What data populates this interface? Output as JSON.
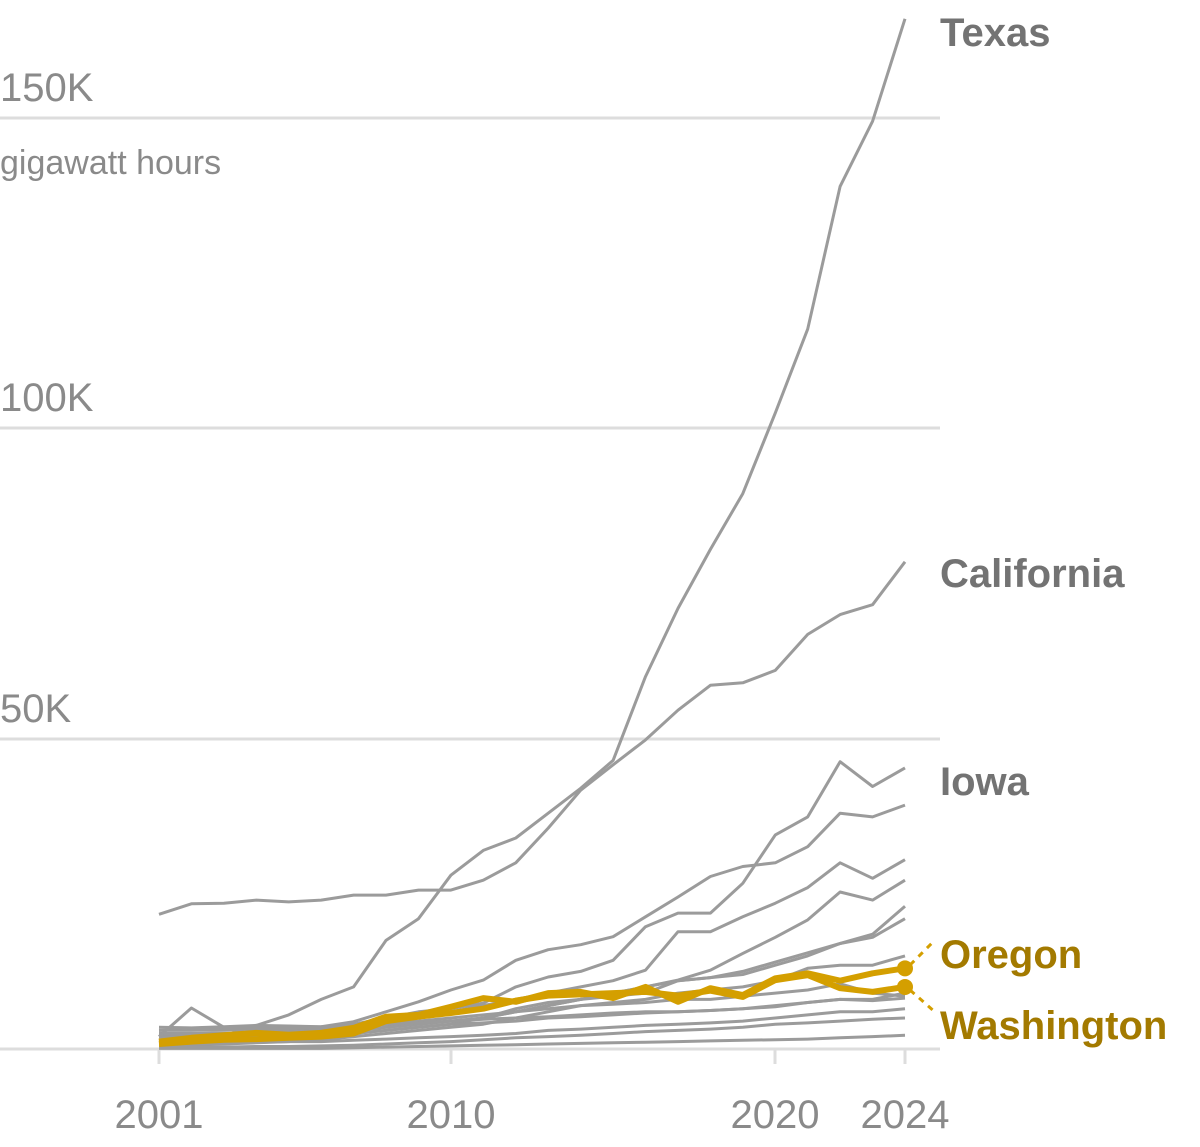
{
  "chart_data": {
    "type": "line",
    "ylabel": "gigawatt hours",
    "ylim": [
      0,
      166000
    ],
    "y_ticks": [
      {
        "value": 50000,
        "label": "50K"
      },
      {
        "value": 100000,
        "label": "100K"
      },
      {
        "value": 150000,
        "label": "150K"
      }
    ],
    "x_ticks": [
      {
        "value": 2001,
        "label": "2001"
      },
      {
        "value": 2010,
        "label": "2010"
      },
      {
        "value": 2020,
        "label": "2020"
      },
      {
        "value": 2024,
        "label": "2024"
      }
    ],
    "x": [
      2001,
      2002,
      2003,
      2004,
      2005,
      2006,
      2007,
      2008,
      2009,
      2010,
      2011,
      2012,
      2013,
      2014,
      2015,
      2016,
      2017,
      2018,
      2019,
      2020,
      2021,
      2022,
      2023,
      2024
    ],
    "colors": {
      "other": "#9b9b9b",
      "highlight": "#d49f00",
      "highlight_label": "#a37a00",
      "label_gray": "#737373",
      "grid": "#dddddd"
    },
    "series": [
      {
        "name": "",
        "highlight": false,
        "values_k": [
          3,
          3.2,
          3.4,
          3.5,
          3.5,
          3.6,
          4.4,
          6,
          7.6,
          9.5,
          11.1,
          14.3,
          16,
          16.8,
          18.1,
          21.3,
          24.5,
          27.8,
          29.4,
          30,
          32.6,
          38,
          37.4,
          39.3
        ]
      },
      {
        "name": "",
        "highlight": false,
        "values_k": [
          2,
          2.2,
          2.5,
          2.8,
          3,
          3.2,
          3.5,
          4,
          5,
          6,
          7,
          8,
          9,
          10,
          11,
          12.7,
          18.9,
          18.9,
          21.3,
          23.5,
          26,
          30,
          27.5,
          30.5
        ]
      },
      {
        "name": "",
        "highlight": false,
        "values_k": [
          1.5,
          1.7,
          2,
          2.2,
          2.5,
          2.8,
          3,
          3.5,
          4,
          4.5,
          5,
          6,
          7,
          8,
          9,
          10,
          11.1,
          12.7,
          15.4,
          18,
          20.8,
          25.3,
          24,
          27.2
        ]
      },
      {
        "name": "",
        "highlight": false,
        "values_k": [
          1,
          1.2,
          1.4,
          1.6,
          1.8,
          2,
          2.5,
          3,
          3.5,
          4,
          5,
          6,
          7,
          8,
          9,
          10,
          11,
          11.5,
          12.5,
          14,
          15.5,
          17,
          18.5,
          23
        ]
      },
      {
        "name": "",
        "highlight": false,
        "values_k": [
          2.5,
          2.5,
          2.6,
          2.6,
          2.7,
          2.8,
          3,
          3.5,
          4,
          4.5,
          5,
          6.5,
          7.5,
          8,
          8.5,
          9,
          11,
          11.5,
          12,
          13.5,
          15,
          17,
          18,
          21
        ]
      },
      {
        "name": "",
        "highlight": false,
        "values_k": [
          0.5,
          0.6,
          0.8,
          1,
          1.2,
          1.5,
          2,
          2.5,
          3,
          3.5,
          4,
          5,
          6,
          7,
          7.5,
          8,
          9,
          9.5,
          10,
          11,
          13,
          13.5,
          13.5,
          15
        ]
      },
      {
        "name": "",
        "highlight": false,
        "values_k": [
          3,
          3,
          3.1,
          3.2,
          3.3,
          3.4,
          3.6,
          4,
          4.5,
          5,
          5.5,
          6,
          6.5,
          7,
          7.2,
          7.5,
          8,
          8,
          8.5,
          9,
          9.5,
          10.5,
          9,
          8.5
        ]
      },
      {
        "name": "",
        "highlight": false,
        "values_k": [
          2,
          2,
          2.1,
          2.1,
          2.2,
          2.3,
          2.5,
          3,
          3.5,
          4,
          4.2,
          4.5,
          5,
          5.2,
          5.5,
          5.8,
          6,
          6.2,
          6.5,
          7,
          7.5,
          8,
          8,
          9
        ]
      },
      {
        "name": "",
        "highlight": false,
        "values_k": [
          1,
          1,
          1.1,
          1.1,
          1.2,
          1.2,
          1.4,
          1.6,
          1.8,
          2,
          2.2,
          2.5,
          3,
          3.2,
          3.5,
          3.8,
          4,
          4.2,
          4.5,
          5,
          5.5,
          6,
          6,
          6.5
        ]
      },
      {
        "name": "",
        "highlight": false,
        "values_k": [
          0.3,
          0.3,
          0.3,
          0.4,
          0.4,
          0.5,
          0.6,
          0.8,
          1,
          1.2,
          1.5,
          1.8,
          2,
          2.2,
          2.5,
          2.8,
          3,
          3.2,
          3.5,
          4,
          4.2,
          4.5,
          4.8,
          5
        ]
      },
      {
        "name": "",
        "highlight": false,
        "values_k": [
          0.1,
          0.1,
          0.1,
          0.1,
          0.1,
          0.1,
          0.2,
          0.3,
          0.4,
          0.5,
          0.6,
          0.7,
          0.8,
          0.9,
          1,
          1.1,
          1.2,
          1.3,
          1.4,
          1.5,
          1.6,
          1.8,
          2,
          2.2
        ]
      },
      {
        "name": "",
        "highlight": false,
        "values_k": [
          3.5,
          3.4,
          3.6,
          3.8,
          3.7,
          3.6,
          3.8,
          4,
          4.2,
          4.5,
          4.8,
          5,
          5.2,
          5.5,
          5.8,
          6,
          6,
          6.2,
          6.5,
          6.8,
          7.5,
          8,
          7.8,
          8.2
        ]
      },
      {
        "name": "Iowa",
        "highlight": false,
        "values_k": [
          2,
          6.6,
          3.5,
          3.5,
          3.5,
          3.5,
          4,
          5,
          6,
          6.5,
          7.4,
          10,
          11.6,
          12.5,
          14.3,
          19.7,
          21.9,
          21.9,
          26.7,
          34.5,
          37.4,
          46.3,
          42.3,
          45.3
        ]
      },
      {
        "name": "California",
        "highlight": false,
        "values_k": [
          21.7,
          23.4,
          23.5,
          24,
          23.7,
          24,
          24.8,
          24.8,
          25.6,
          25.6,
          27.2,
          30,
          35.6,
          41.7,
          45.8,
          49.8,
          54.6,
          58.6,
          59,
          61,
          66.8,
          70,
          71.6,
          78.5
        ]
      },
      {
        "name": "Texas",
        "highlight": false,
        "values_k": [
          1.5,
          1.8,
          2.2,
          3.8,
          5.5,
          8,
          10,
          17.5,
          21,
          28,
          32,
          34,
          38,
          42,
          46.5,
          60,
          71,
          80.5,
          89.5,
          102.5,
          116,
          139,
          149.5,
          166
        ]
      },
      {
        "name": "Washington",
        "highlight": true,
        "values_k": [
          0.8,
          1.2,
          1.5,
          1.6,
          1.8,
          2,
          2.5,
          4.5,
          5.2,
          5.8,
          6.5,
          7.8,
          8.6,
          8.8,
          9,
          9.2,
          8.6,
          9.4,
          8.4,
          11.1,
          11.9,
          9.8,
          9.2,
          10
        ]
      },
      {
        "name": "Oregon",
        "highlight": true,
        "values_k": [
          1.2,
          1.8,
          2.2,
          2.6,
          2.3,
          2.6,
          3.4,
          5.2,
          5.5,
          6.8,
          8.2,
          7.6,
          9,
          9.2,
          8.2,
          10,
          7.6,
          9.8,
          8.7,
          11.4,
          12.2,
          11,
          12.2,
          13
        ]
      }
    ],
    "labels": {
      "texas": "Texas",
      "california": "California",
      "iowa": "Iowa",
      "oregon": "Oregon",
      "washington": "Washington"
    }
  }
}
